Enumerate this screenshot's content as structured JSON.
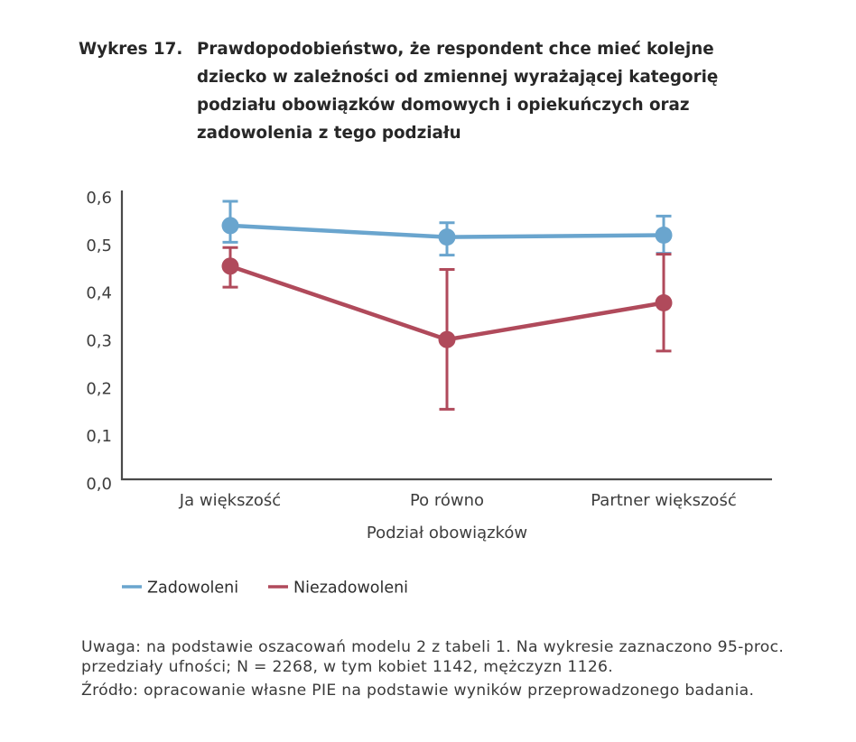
{
  "figure": {
    "label": "Wykres 17.",
    "title_lines": [
      "Prawdopodobieństwo, że respondent chce mieć kolejne",
      "dziecko w zależności od zmiennej wyrażającej kategorię",
      "podziału obowiązków domowych i opiekuńczych oraz",
      "zadowolenia z tego podziału"
    ]
  },
  "chart_data": {
    "type": "line",
    "title": "Prawdopodobieństwo, że respondent chce mieć kolejne dziecko w zależności od zmiennej wyrażającej kategorię podziału obowiązków domowych i opiekuńczych oraz zadowolenia z tego podziału",
    "categories": [
      "Ja większość",
      "Po równo",
      "Partner większość"
    ],
    "xlabel": "Podział obowiązków",
    "ylabel": "",
    "ylim": [
      0.0,
      0.6
    ],
    "ytick_labels": [
      "0,0",
      "0,1",
      "0,2",
      "0,3",
      "0,4",
      "0,5",
      "0,6"
    ],
    "grid": false,
    "legend_position": "bottom-left",
    "error_bars": "95% confidence intervals",
    "series": [
      {
        "name": "Zadowoleni",
        "color": "#6aa5ce",
        "values": [
          0.532,
          0.508,
          0.512
        ],
        "ci_low": [
          0.497,
          0.47,
          0.474
        ],
        "ci_high": [
          0.583,
          0.538,
          0.552
        ]
      },
      {
        "name": "Niezadowoleni",
        "color": "#b04a5b",
        "values": [
          0.447,
          0.293,
          0.37
        ],
        "ci_low": [
          0.403,
          0.147,
          0.269
        ],
        "ci_high": [
          0.486,
          0.44,
          0.472
        ]
      }
    ]
  },
  "notes": {
    "note_lines": [
      "Uwaga: na podstawie oszacowań modelu 2 z tabeli 1. Na wykresie zaznaczono 95-proc.",
      "przedziały ufności; N = 2268, w tym kobiet 1142, mężczyzn 1126."
    ],
    "source": "Źródło: opracowanie własne PIE na podstawie wyników przeprowadzonego badania."
  },
  "colors": {
    "series_blue": "#6aa5ce",
    "series_red": "#b04a5b",
    "axis": "#4a4a4a",
    "label_text": "#3d3d3d",
    "title_text": "#272727",
    "note_text": "#3a3a3a"
  }
}
